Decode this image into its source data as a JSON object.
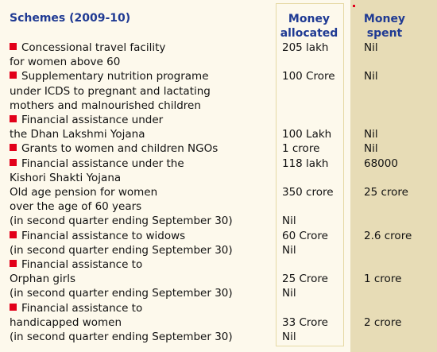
{
  "title": "Schemes (2009-10)",
  "header": {
    "allocated": [
      "Money",
      "allocated"
    ],
    "spent": [
      "Money",
      "spent"
    ]
  },
  "rows": [
    {
      "left": "Concessional travel facility",
      "bullet": true,
      "alloc": "205 lakh",
      "spent": "Nil"
    },
    {
      "left": "for women above 60",
      "bullet": false,
      "alloc": "",
      "spent": ""
    },
    {
      "left": "Supplementary nutrition programe",
      "bullet": true,
      "alloc": "100 Crore",
      "spent": "Nil"
    },
    {
      "left": "under ICDS to pregnant and lactating",
      "bullet": false,
      "alloc": "",
      "spent": ""
    },
    {
      "left": "mothers and malnourished children",
      "bullet": false,
      "alloc": "",
      "spent": ""
    },
    {
      "left": "Financial assistance under",
      "bullet": true,
      "alloc": "",
      "spent": ""
    },
    {
      "left": "the Dhan Lakshmi Yojana",
      "bullet": false,
      "alloc": "100 Lakh",
      "spent": "Nil"
    },
    {
      "left": "Grants to women and children NGOs",
      "bullet": true,
      "alloc": "1 crore",
      "spent": "Nil"
    },
    {
      "left": "Financial assistance under the",
      "bullet": true,
      "alloc": "118 lakh",
      "spent": "68000"
    },
    {
      "left": "Kishori Shakti Yojana",
      "bullet": false,
      "alloc": "",
      "spent": ""
    },
    {
      "left": "Old age pension for women",
      "bullet": false,
      "alloc": "350 crore",
      "spent": "25 crore"
    },
    {
      "left": "over the age of 60 years",
      "bullet": false,
      "alloc": "",
      "spent": ""
    },
    {
      "left": "(in second quarter ending September 30)",
      "bullet": false,
      "alloc": "Nil",
      "spent": ""
    },
    {
      "left": "Financial assistance to widows",
      "bullet": true,
      "alloc": "60 Crore",
      "spent": "2.6 crore"
    },
    {
      "left": "(in second quarter ending September 30)",
      "bullet": false,
      "alloc": "Nil",
      "spent": ""
    },
    {
      "left": "Financial assistance to",
      "bullet": true,
      "alloc": "",
      "spent": ""
    },
    {
      "left": "Orphan girls",
      "bullet": false,
      "alloc": "25 Crore",
      "spent": "1 crore"
    },
    {
      "left": "(in second quarter ending September 30)",
      "bullet": false,
      "alloc": "Nil",
      "spent": ""
    },
    {
      "left": "Financial assistance to",
      "bullet": true,
      "alloc": "",
      "spent": ""
    },
    {
      "left": "handicapped women",
      "bullet": false,
      "alloc": "33 Crore",
      "spent": "2 crore"
    },
    {
      "left": "(in second quarter ending September 30)",
      "bullet": false,
      "alloc": "Nil",
      "spent": ""
    }
  ],
  "colors": {
    "background": "#fdf9ec",
    "spent_column": "#e7dcb6",
    "header_text": "#1f3a93",
    "bullet": "#e2001a"
  }
}
